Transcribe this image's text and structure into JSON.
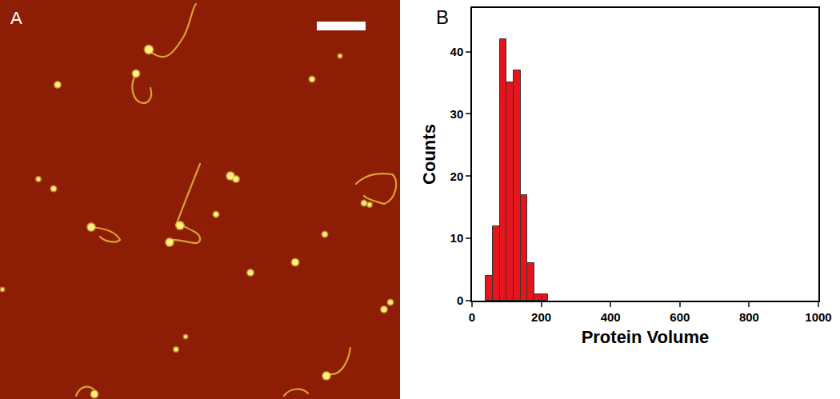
{
  "image_panel": {
    "label": "A"
  },
  "chart_data": {
    "type": "histogram",
    "annotations": [
      "B"
    ],
    "x_label": "Protein Volume",
    "y_label": "Counts",
    "bins": [
      40,
      60,
      80,
      100,
      120,
      140,
      160,
      180,
      200,
      220
    ],
    "counts": [
      4,
      12,
      42,
      35,
      37,
      17,
      6,
      1,
      1
    ],
    "color": "#e8141b",
    "xlim": [
      0,
      1000
    ],
    "xticks": [
      0,
      200,
      400,
      600,
      800,
      1000
    ],
    "ylim": [
      0,
      47
    ],
    "yticks": [
      0,
      10,
      20,
      30,
      40
    ],
    "grid": false
  }
}
